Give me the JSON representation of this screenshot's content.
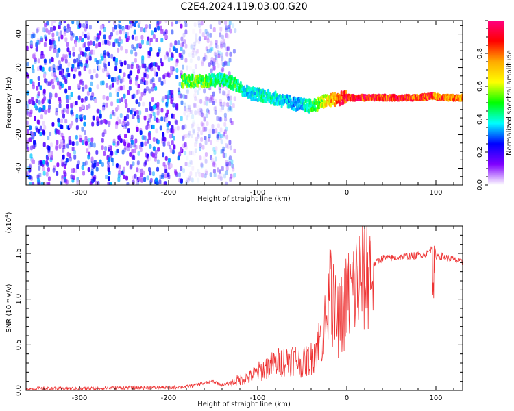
{
  "title": "C2E4.2024.119.03.00.G20",
  "chart_data": [
    {
      "type": "heatmap",
      "xlabel": "Height of straight line (km)",
      "ylabel": "Frequency (Hz)",
      "xlim": [
        -360,
        130
      ],
      "ylim": [
        -50,
        48
      ],
      "xticks": [
        -300,
        -200,
        -100,
        0,
        100
      ],
      "yticks": [
        -40,
        -20,
        0,
        20,
        40
      ],
      "colorbar": {
        "label": "Normalized spectral amplitude",
        "range": [
          0.0,
          1.0
        ],
        "ticks": [
          0.0,
          0.2,
          0.4,
          0.6,
          0.8
        ],
        "colors": [
          "#ff0080",
          "#ff0000",
          "#ffaa00",
          "#ffff00",
          "#00ff00",
          "#00ffff",
          "#0000ff",
          "#8000ff",
          "#ffffff"
        ]
      },
      "ridge": {
        "x": [
          -185,
          -160,
          -140,
          -125,
          -110,
          -90,
          -70,
          -55,
          -40,
          -30,
          -15,
          0,
          40,
          80,
          95,
          110,
          130
        ],
        "y": [
          12,
          12,
          13,
          10,
          5,
          3,
          0,
          -2,
          -3,
          -1,
          1,
          2,
          2,
          2,
          3,
          2,
          2
        ],
        "amplitude": [
          0.55,
          0.55,
          0.45,
          0.5,
          0.4,
          0.45,
          0.4,
          0.35,
          0.5,
          0.6,
          0.8,
          0.95,
          0.95,
          0.9,
          0.9,
          0.85,
          0.8
        ]
      }
    },
    {
      "type": "line",
      "xlabel": "Height of straight line (km)",
      "ylabel": "SNR (10 * v/v)",
      "yscale_label": "(x10",
      "yscale_exp": "4",
      "yscale_close": ")",
      "xlim": [
        -360,
        130
      ],
      "ylim": [
        0,
        1.8
      ],
      "xticks": [
        -300,
        -200,
        -100,
        0,
        100
      ],
      "yticks": [
        "0.0",
        "0.5",
        "1.0",
        "1.5"
      ],
      "line_color": "#ee3333",
      "series": [
        {
          "x": [
            -360,
            -300,
            -250,
            -200,
            -180,
            -160,
            -150,
            -140,
            -130,
            -120,
            -110,
            -100,
            -90,
            -80,
            -70,
            -60,
            -50,
            -40,
            -35,
            -30,
            -25,
            -20,
            -18,
            -15,
            -10,
            -5,
            0,
            10,
            20,
            30,
            40,
            50,
            60,
            70,
            80,
            90,
            95,
            97,
            100,
            110,
            120,
            130
          ],
          "y": [
            0.02,
            0.02,
            0.03,
            0.03,
            0.04,
            0.08,
            0.1,
            0.06,
            0.08,
            0.12,
            0.14,
            0.2,
            0.25,
            0.3,
            0.32,
            0.35,
            0.3,
            0.35,
            0.45,
            0.55,
            0.7,
            0.85,
            1.2,
            0.9,
            0.75,
            0.85,
            1.0,
            1.15,
            1.3,
            1.38,
            1.45,
            1.45,
            1.46,
            1.47,
            1.48,
            1.5,
            1.55,
            1.6,
            1.48,
            1.46,
            1.43,
            1.4
          ]
        }
      ]
    }
  ]
}
